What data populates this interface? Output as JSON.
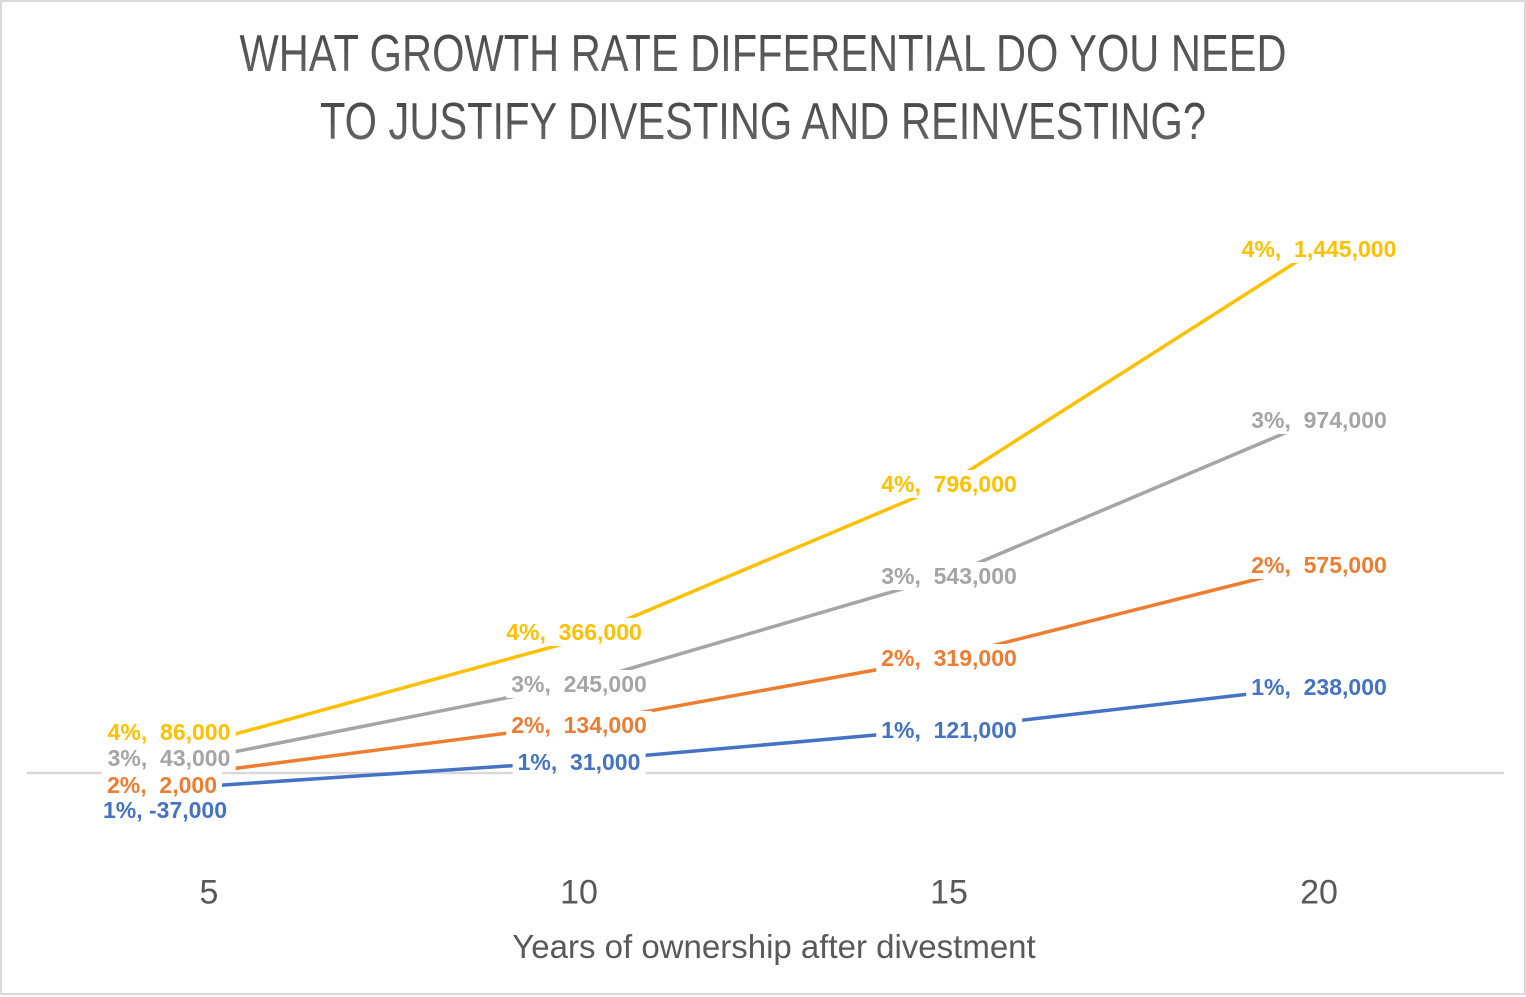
{
  "chart_data": {
    "type": "line",
    "title": "WHAT GROWTH RATE DIFFERENTIAL DO YOU NEED TO JUSTIFY DIVESTING AND REINVESTING?",
    "title_lines": [
      "WHAT GROWTH RATE DIFFERENTIAL DO YOU NEED",
      "TO JUSTIFY DIVESTING AND REINVESTING?"
    ],
    "xlabel": "Years of ownership after divestment",
    "ylabel": "",
    "x": [
      5,
      10,
      15,
      20
    ],
    "x_tick_labels": [
      "5",
      "10",
      "15",
      "20"
    ],
    "series": [
      {
        "name": "1%",
        "color": "#4472C4",
        "values": [
          -37000,
          31000,
          121000,
          238000
        ]
      },
      {
        "name": "2%",
        "color": "#ED7D31",
        "values": [
          2000,
          134000,
          319000,
          575000
        ]
      },
      {
        "name": "3%",
        "color": "#A5A5A5",
        "values": [
          43000,
          245000,
          543000,
          974000
        ]
      },
      {
        "name": "4%",
        "color": "#FFC000",
        "values": [
          86000,
          366000,
          796000,
          1445000
        ]
      }
    ],
    "data_labels": [
      [
        "1%, -37,000",
        "1%,  31,000",
        "1%,  121,000",
        "1%,  238,000"
      ],
      [
        "2%,  2,000",
        "2%,  134,000",
        "2%,  319,000",
        "2%,  575,000"
      ],
      [
        "3%,  43,000",
        "3%,  245,000",
        "3%,  543,000",
        "3%,  974,000"
      ],
      [
        "4%,  86,000",
        "4%,  366,000",
        "4%,  796,000",
        "4%,  1,445,000"
      ]
    ],
    "legend": "none",
    "grid": "single horizontal gridline at value 0",
    "ylim": [
      -100000,
      1500000
    ],
    "label_separator": ",  "
  },
  "styles": {
    "background": "#FFFFFF",
    "border_color": "#D9D9D9",
    "gridline_color": "#D9D9D9",
    "title_color": "#595959",
    "axis_text_color": "#595959"
  }
}
